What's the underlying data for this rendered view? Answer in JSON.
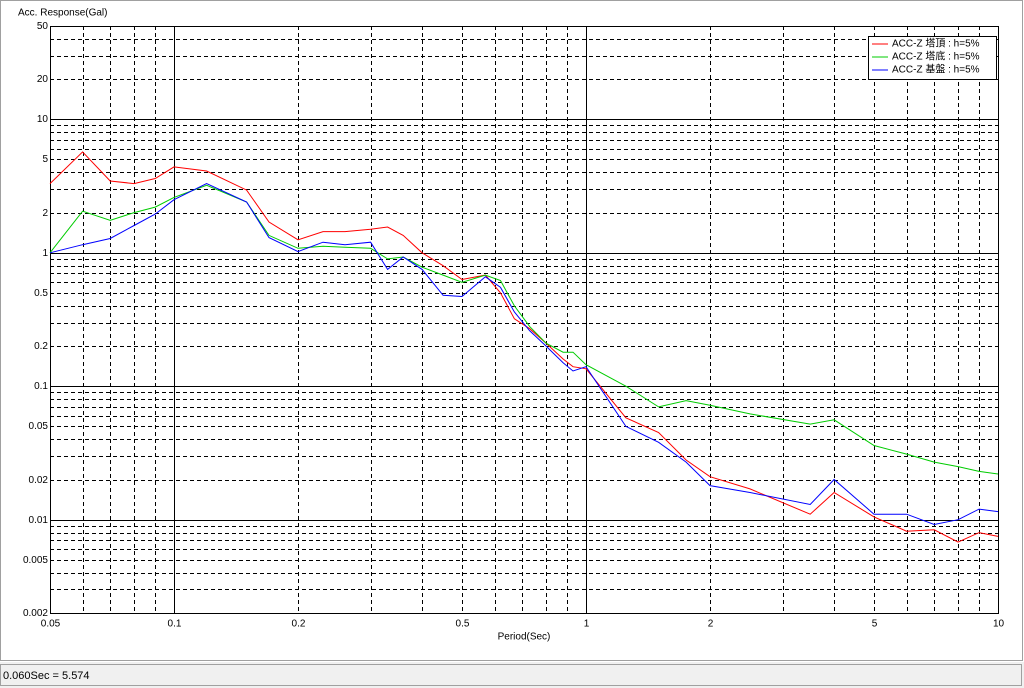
{
  "chart_data": {
    "type": "line",
    "y_label": "Acc. Response(Gal)",
    "x_label": "Period(Sec)",
    "x_log": true,
    "y_log": true,
    "grid": true,
    "legend_position": "top-right",
    "xlim": [
      0.05,
      10
    ],
    "xticks": [
      0.05,
      0.1,
      0.2,
      0.5,
      1,
      2,
      5,
      10
    ],
    "xminor": [
      0.06,
      0.07,
      0.08,
      0.09,
      0.3,
      0.4,
      0.6,
      0.7,
      0.8,
      0.9,
      3,
      4,
      6,
      7,
      8,
      9
    ],
    "ylim": [
      0.002,
      50
    ],
    "yticks": [
      0.002,
      0.005,
      0.01,
      0.02,
      0.05,
      0.1,
      0.2,
      0.5,
      1,
      2,
      5,
      10,
      20,
      50
    ],
    "yminor": [
      0.003,
      0.004,
      0.006,
      0.007,
      0.008,
      0.009,
      0.03,
      0.04,
      0.06,
      0.07,
      0.08,
      0.09,
      0.3,
      0.4,
      0.6,
      0.7,
      0.8,
      0.9,
      3,
      4,
      6,
      7,
      8,
      9,
      30,
      40
    ],
    "x": [
      0.05,
      0.06,
      0.07,
      0.08,
      0.09,
      0.1,
      0.12,
      0.15,
      0.17,
      0.2,
      0.23,
      0.26,
      0.3,
      0.33,
      0.36,
      0.4,
      0.45,
      0.5,
      0.57,
      0.62,
      0.67,
      0.73,
      0.8,
      0.88,
      0.93,
      1.0,
      1.25,
      1.5,
      1.75,
      2.0,
      2.5,
      3.5,
      4.0,
      5.0,
      6.0,
      7.0,
      8.0,
      9.0,
      10
    ],
    "series": [
      {
        "name": "ACC-Z 塔頂 : h=5%",
        "color": "#ff0000",
        "values": [
          3.3,
          5.7,
          3.45,
          3.3,
          3.6,
          4.4,
          4.1,
          2.95,
          1.7,
          1.25,
          1.44,
          1.44,
          1.5,
          1.56,
          1.35,
          1.0,
          0.8,
          0.63,
          0.68,
          0.5,
          0.32,
          0.27,
          0.21,
          0.16,
          0.14,
          0.135,
          0.058,
          0.045,
          0.028,
          0.021,
          0.017,
          0.011,
          0.016,
          0.0105,
          0.0082,
          0.0084,
          0.0068,
          0.008,
          0.0075
        ]
      },
      {
        "name": "ACC-Z 塔底 : h=5%",
        "color": "#00cc00",
        "values": [
          1.0,
          2.05,
          1.75,
          2.0,
          2.2,
          2.6,
          3.2,
          2.4,
          1.35,
          1.08,
          1.12,
          1.1,
          1.08,
          0.9,
          0.93,
          0.78,
          0.68,
          0.6,
          0.68,
          0.62,
          0.4,
          0.28,
          0.21,
          0.18,
          0.18,
          0.145,
          0.1,
          0.07,
          0.078,
          0.072,
          0.062,
          0.052,
          0.056,
          0.036,
          0.031,
          0.027,
          0.025,
          0.023,
          0.022
        ]
      },
      {
        "name": "ACC-Z 基盤 : h=5%",
        "color": "#0000ff",
        "values": [
          1.0,
          1.15,
          1.28,
          1.6,
          1.95,
          2.5,
          3.3,
          2.4,
          1.3,
          1.02,
          1.2,
          1.15,
          1.2,
          0.75,
          0.93,
          0.75,
          0.48,
          0.47,
          0.66,
          0.55,
          0.36,
          0.26,
          0.2,
          0.15,
          0.13,
          0.14,
          0.05,
          0.038,
          0.027,
          0.018,
          0.016,
          0.013,
          0.02,
          0.011,
          0.011,
          0.0092,
          0.01,
          0.012,
          0.0115
        ]
      }
    ]
  },
  "status_bar": {
    "text": "0.060Sec = 5.574"
  }
}
